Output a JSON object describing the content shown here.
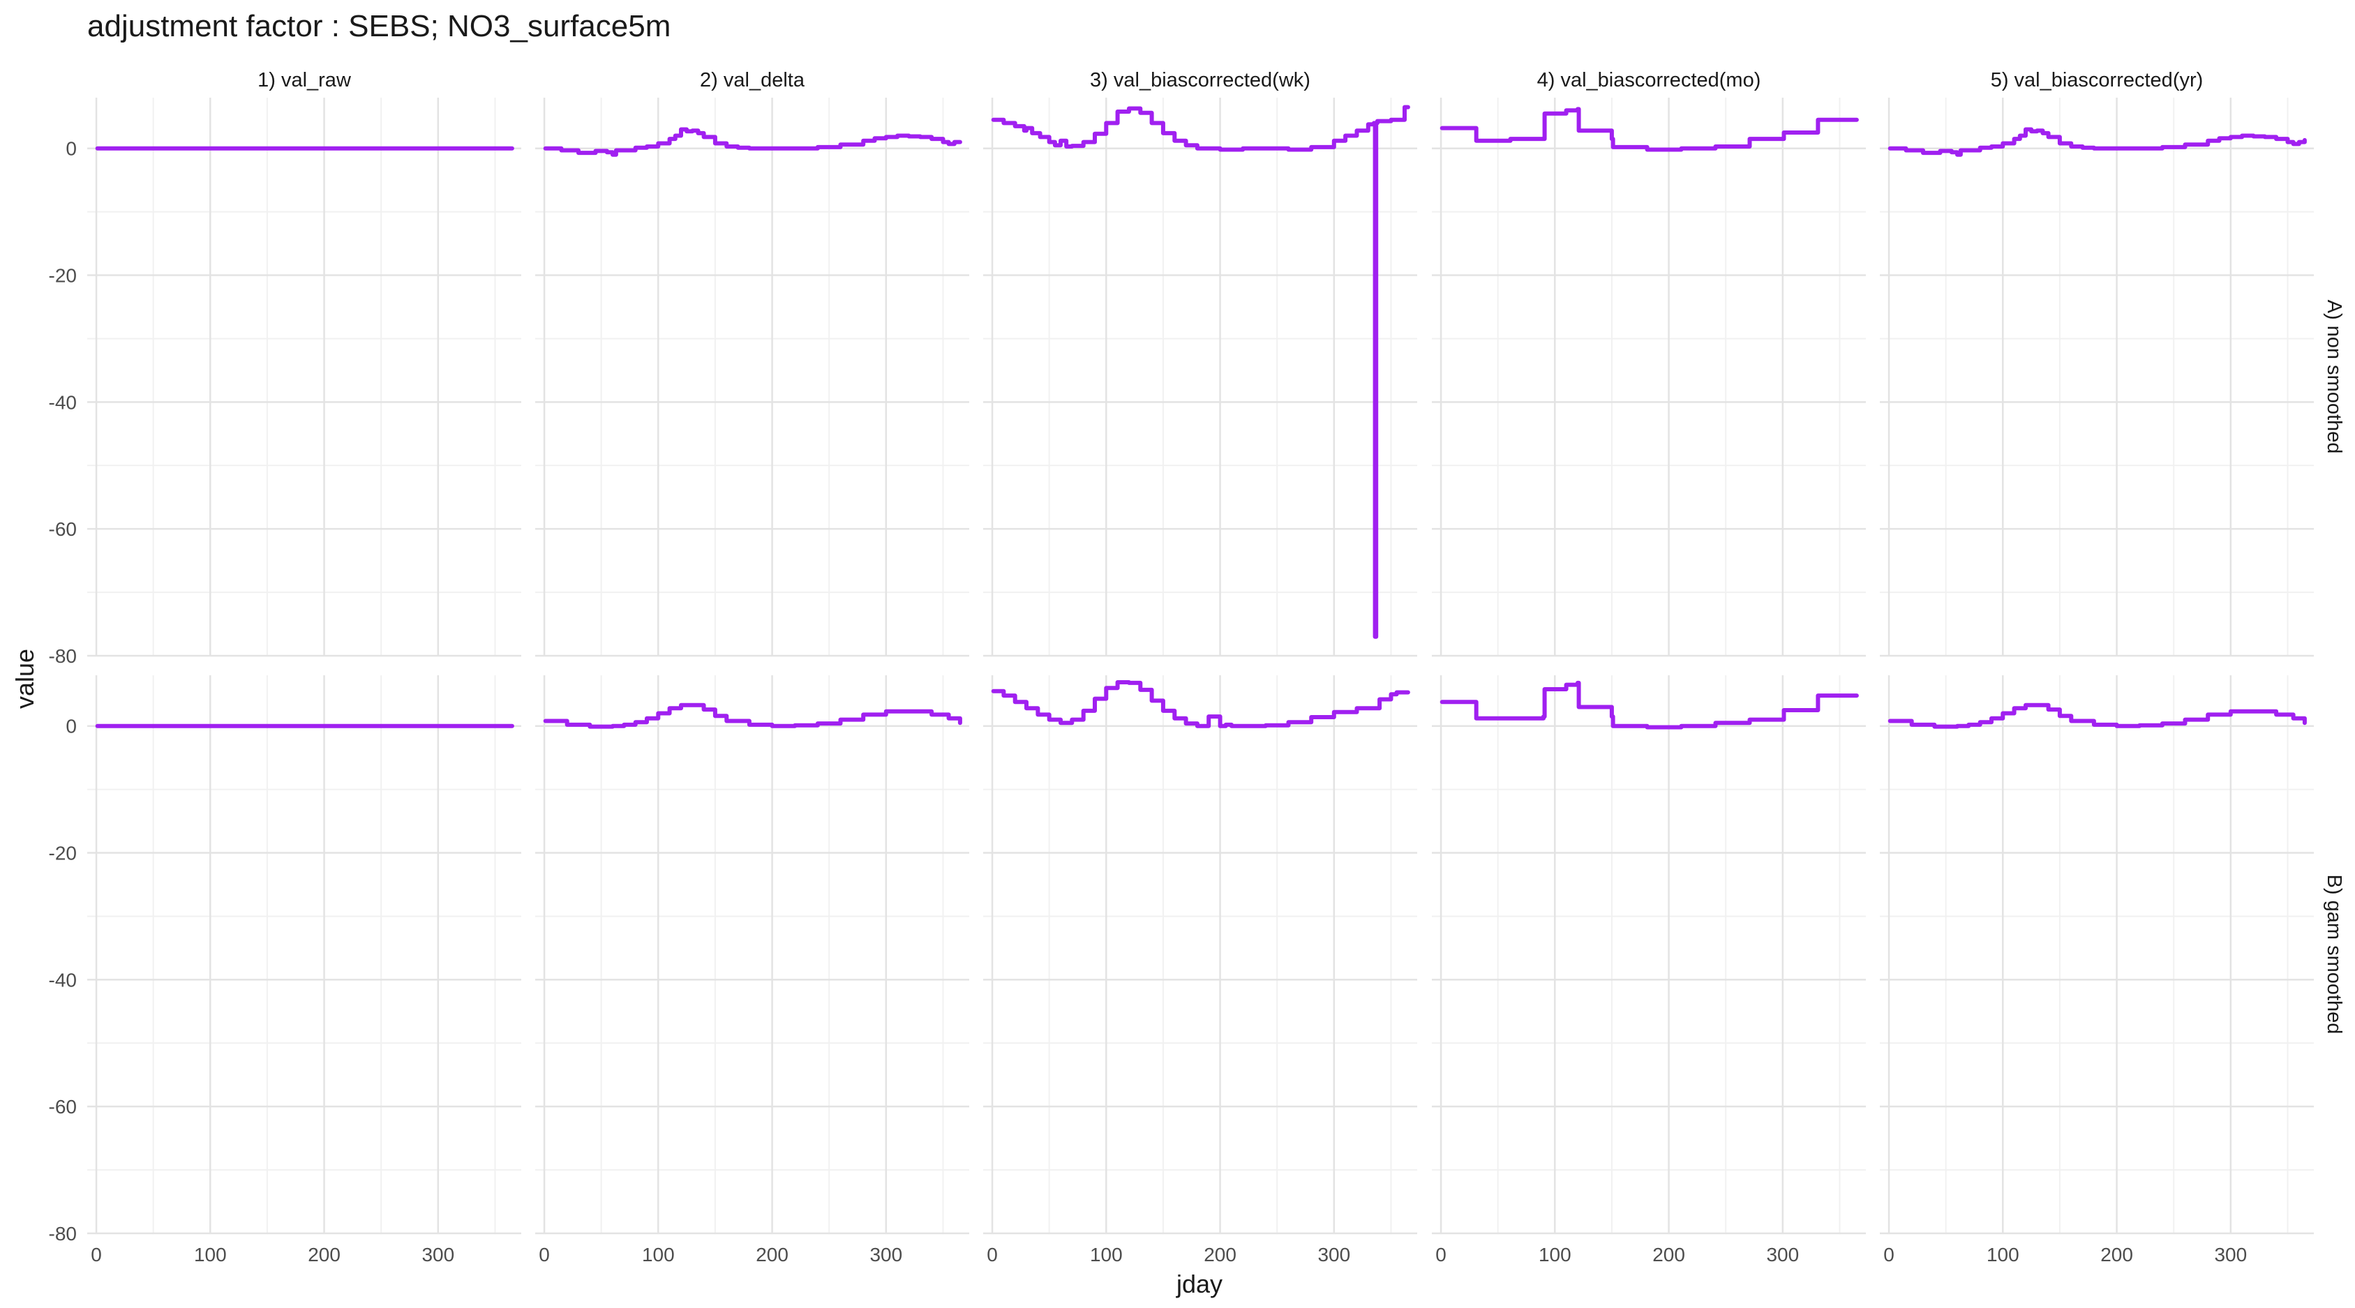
{
  "chart_data": {
    "type": "line",
    "title": "adjustment factor : SEBS; NO3_surface5m",
    "xlabel": "jday",
    "ylabel": "value",
    "xlim": [
      -8,
      373
    ],
    "ylim": [
      -80,
      8
    ],
    "x_ticks": [
      0,
      100,
      200,
      300
    ],
    "y_ticks": [
      0,
      -20,
      -40,
      -60,
      -80
    ],
    "grid": true,
    "line_color": "#A020F0",
    "columns": [
      "1) val_raw",
      "2) val_delta",
      "3) val_biascorrected(wk)",
      "4) val_biascorrected(mo)",
      "5) val_biascorrected(yr)"
    ],
    "rows": [
      "A) non smoothed",
      "B) gam smoothed"
    ],
    "panels": [
      {
        "row": 0,
        "col": 0,
        "x": [
          1,
          365
        ],
        "y": [
          0,
          0
        ]
      },
      {
        "row": 0,
        "col": 1,
        "x": [
          1,
          15,
          30,
          45,
          55,
          60,
          63,
          70,
          80,
          90,
          100,
          110,
          115,
          120,
          125,
          130,
          135,
          140,
          150,
          160,
          170,
          180,
          200,
          220,
          240,
          260,
          280,
          290,
          300,
          310,
          320,
          330,
          340,
          350,
          355,
          360,
          365
        ],
        "y": [
          0,
          -0.3,
          -0.7,
          -0.4,
          -0.6,
          -1,
          -0.3,
          -0.3,
          0.1,
          0.3,
          0.8,
          1.5,
          2,
          3,
          2.7,
          2.8,
          2.4,
          1.8,
          0.8,
          0.3,
          0.1,
          0,
          0,
          0,
          0.2,
          0.6,
          1.2,
          1.6,
          1.8,
          2,
          1.9,
          1.8,
          1.5,
          1,
          0.7,
          1,
          1
        ]
      },
      {
        "row": 0,
        "col": 2,
        "x": [
          1,
          10,
          20,
          28,
          30,
          35,
          42,
          50,
          55,
          60,
          65,
          70,
          80,
          90,
          100,
          110,
          120,
          130,
          140,
          150,
          160,
          170,
          180,
          200,
          220,
          240,
          260,
          280,
          300,
          310,
          320,
          330,
          335,
          336,
          337,
          338,
          340,
          350,
          360,
          362,
          365
        ],
        "y": [
          4.5,
          4,
          3.5,
          2.8,
          3.2,
          2.4,
          1.8,
          1,
          0.5,
          1.2,
          0.3,
          0.4,
          1,
          2.3,
          4,
          5.8,
          6.3,
          5.6,
          4,
          2.4,
          1.2,
          0.5,
          0,
          -0.2,
          0,
          0,
          -0.2,
          0.2,
          1.2,
          2,
          2.8,
          3.8,
          4,
          -77,
          4,
          4.3,
          4.3,
          4.5,
          4.5,
          6.5,
          6.5
        ]
      },
      {
        "row": 0,
        "col": 3,
        "x": [
          1,
          30,
          31,
          60,
          61,
          90,
          91,
          110,
          111,
          120,
          121,
          140,
          150,
          151,
          180,
          181,
          210,
          211,
          240,
          241,
          270,
          271,
          300,
          301,
          330,
          331,
          365
        ],
        "y": [
          3.2,
          3.2,
          1.2,
          1.2,
          1.5,
          1.5,
          5.5,
          6,
          6,
          6.2,
          2.8,
          2.8,
          1.5,
          0.2,
          0.2,
          -0.2,
          -0.2,
          0,
          0,
          0.3,
          0.3,
          1.5,
          1.5,
          2.5,
          2.5,
          4.5,
          4.5
        ]
      },
      {
        "row": 0,
        "col": 4,
        "x": [
          1,
          15,
          30,
          45,
          55,
          60,
          63,
          70,
          80,
          90,
          100,
          110,
          115,
          120,
          125,
          130,
          135,
          140,
          150,
          160,
          170,
          180,
          200,
          220,
          240,
          260,
          280,
          290,
          300,
          310,
          320,
          330,
          340,
          350,
          355,
          360,
          365
        ],
        "y": [
          0,
          -0.3,
          -0.7,
          -0.4,
          -0.6,
          -1,
          -0.3,
          -0.3,
          0.1,
          0.3,
          0.8,
          1.5,
          2,
          3,
          2.7,
          2.8,
          2.4,
          1.8,
          0.8,
          0.3,
          0.1,
          0,
          0,
          0,
          0.2,
          0.6,
          1.2,
          1.6,
          1.8,
          2,
          1.9,
          1.8,
          1.5,
          1,
          0.7,
          1,
          1.3
        ]
      },
      {
        "row": 1,
        "col": 0,
        "x": [
          1,
          365
        ],
        "y": [
          0,
          0
        ]
      },
      {
        "row": 1,
        "col": 1,
        "x": [
          1,
          20,
          40,
          60,
          70,
          80,
          90,
          100,
          110,
          120,
          130,
          140,
          150,
          160,
          180,
          200,
          220,
          240,
          260,
          280,
          300,
          320,
          340,
          355,
          365
        ],
        "y": [
          0.8,
          0.2,
          -0.1,
          0,
          0.2,
          0.6,
          1.2,
          2,
          2.8,
          3.3,
          3.3,
          2.6,
          1.6,
          0.8,
          0.2,
          0,
          0.1,
          0.4,
          1,
          1.8,
          2.3,
          2.3,
          1.8,
          1.2,
          0.5
        ]
      },
      {
        "row": 1,
        "col": 2,
        "x": [
          1,
          10,
          20,
          30,
          40,
          50,
          60,
          70,
          80,
          90,
          100,
          110,
          120,
          130,
          140,
          150,
          160,
          170,
          180,
          185,
          190,
          195,
          200,
          205,
          210,
          220,
          240,
          260,
          280,
          300,
          320,
          340,
          350,
          355,
          365
        ],
        "y": [
          5.5,
          4.8,
          3.8,
          2.8,
          1.8,
          1,
          0.5,
          1,
          2.4,
          4.3,
          6,
          6.9,
          6.8,
          5.7,
          4,
          2.4,
          1.2,
          0.4,
          0,
          0,
          1.5,
          1.5,
          0,
          0.2,
          0,
          0,
          0.1,
          0.6,
          1.4,
          2.2,
          2.8,
          4.2,
          5,
          5.3,
          5.3
        ]
      },
      {
        "row": 1,
        "col": 3,
        "x": [
          1,
          30,
          31,
          90,
          91,
          110,
          111,
          120,
          121,
          140,
          150,
          151,
          180,
          181,
          210,
          211,
          240,
          241,
          270,
          271,
          300,
          301,
          330,
          331,
          365
        ],
        "y": [
          3.8,
          3.8,
          1.2,
          1.5,
          5.8,
          6.5,
          6.5,
          6.8,
          3,
          3,
          1.5,
          0,
          0,
          -0.2,
          -0.2,
          0,
          0,
          0.5,
          0.5,
          1,
          1,
          2.5,
          2.5,
          4.8,
          4.8
        ]
      },
      {
        "row": 1,
        "col": 4,
        "x": [
          1,
          20,
          40,
          60,
          70,
          80,
          90,
          100,
          110,
          120,
          130,
          140,
          150,
          160,
          180,
          200,
          220,
          240,
          260,
          280,
          300,
          320,
          340,
          355,
          365
        ],
        "y": [
          0.8,
          0.2,
          -0.1,
          0,
          0.2,
          0.6,
          1.2,
          2,
          2.8,
          3.3,
          3.3,
          2.6,
          1.6,
          0.8,
          0.2,
          0,
          0.1,
          0.4,
          1,
          1.8,
          2.3,
          2.3,
          1.8,
          1.2,
          0.5
        ]
      }
    ]
  }
}
